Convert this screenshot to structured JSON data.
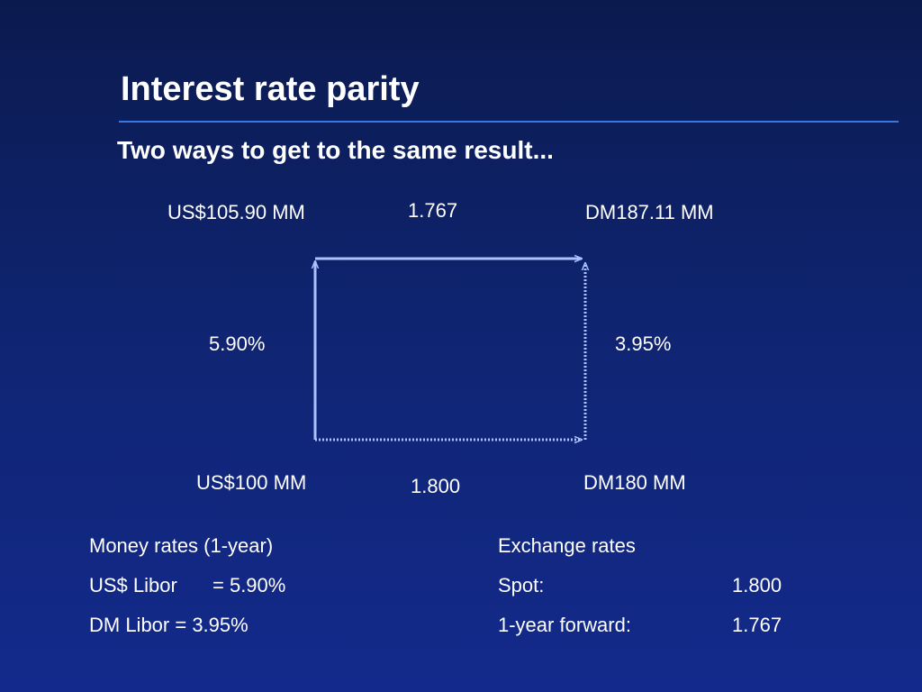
{
  "slide": {
    "title": "Interest rate parity",
    "subtitle": "Two ways to get to the same result..."
  },
  "diagram": {
    "top_left": "US$105.90 MM",
    "top_rate": "1.767",
    "top_right": "DM187.11 MM",
    "left_rate": "5.90%",
    "right_rate": "3.95%",
    "bottom_left": "US$100 MM",
    "bottom_rate": "1.800",
    "bottom_right": "DM180 MM"
  },
  "money_rates": {
    "heading": "Money rates (1-year)",
    "us_label": "US$ Libor",
    "us_value": "= 5.90%",
    "dm_line": "DM Libor = 3.95%"
  },
  "exchange_rates": {
    "heading": "Exchange rates",
    "spot_label": "Spot:",
    "spot_value": "1.800",
    "forward_label": "1-year forward:",
    "forward_value": "1.767"
  },
  "colors": {
    "background_top": "#0b1a4e",
    "background_bottom": "#132a8c",
    "rule": "#3a78e0",
    "arrow": "#a9c2ff"
  }
}
